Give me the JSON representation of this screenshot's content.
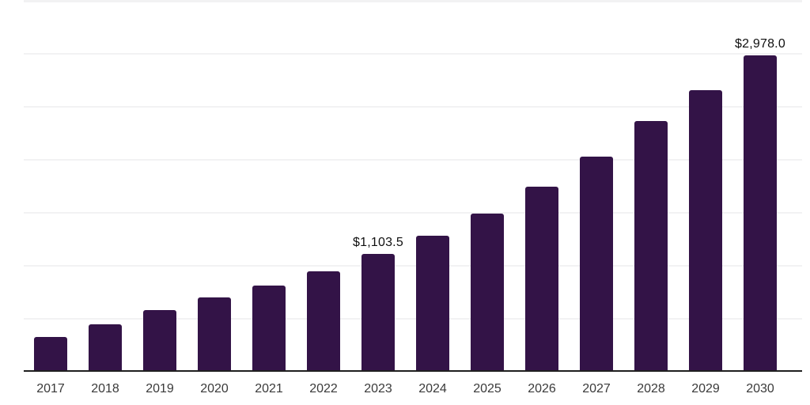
{
  "chart_data": {
    "type": "bar",
    "title": "",
    "xlabel": "",
    "ylabel": "",
    "categories": [
      "2017",
      "2018",
      "2019",
      "2020",
      "2021",
      "2022",
      "2023",
      "2024",
      "2025",
      "2026",
      "2027",
      "2028",
      "2029",
      "2030"
    ],
    "values": [
      320,
      440,
      575,
      695,
      805,
      940,
      1103.5,
      1280,
      1485,
      1740,
      2020,
      2360,
      2650,
      2978
    ],
    "value_labels": {
      "2023": "$1,103.5",
      "2030": "$2,978.0"
    },
    "ylim": [
      0,
      3500
    ],
    "grid_step": 500,
    "grid": "on",
    "legend": "none",
    "bar_color": "#331347",
    "gridline_color": "#f2f2f3",
    "axis_line_color": "#1f1f1f",
    "tick_label_color": "#3a3a3a",
    "value_label_color": "#101010"
  }
}
